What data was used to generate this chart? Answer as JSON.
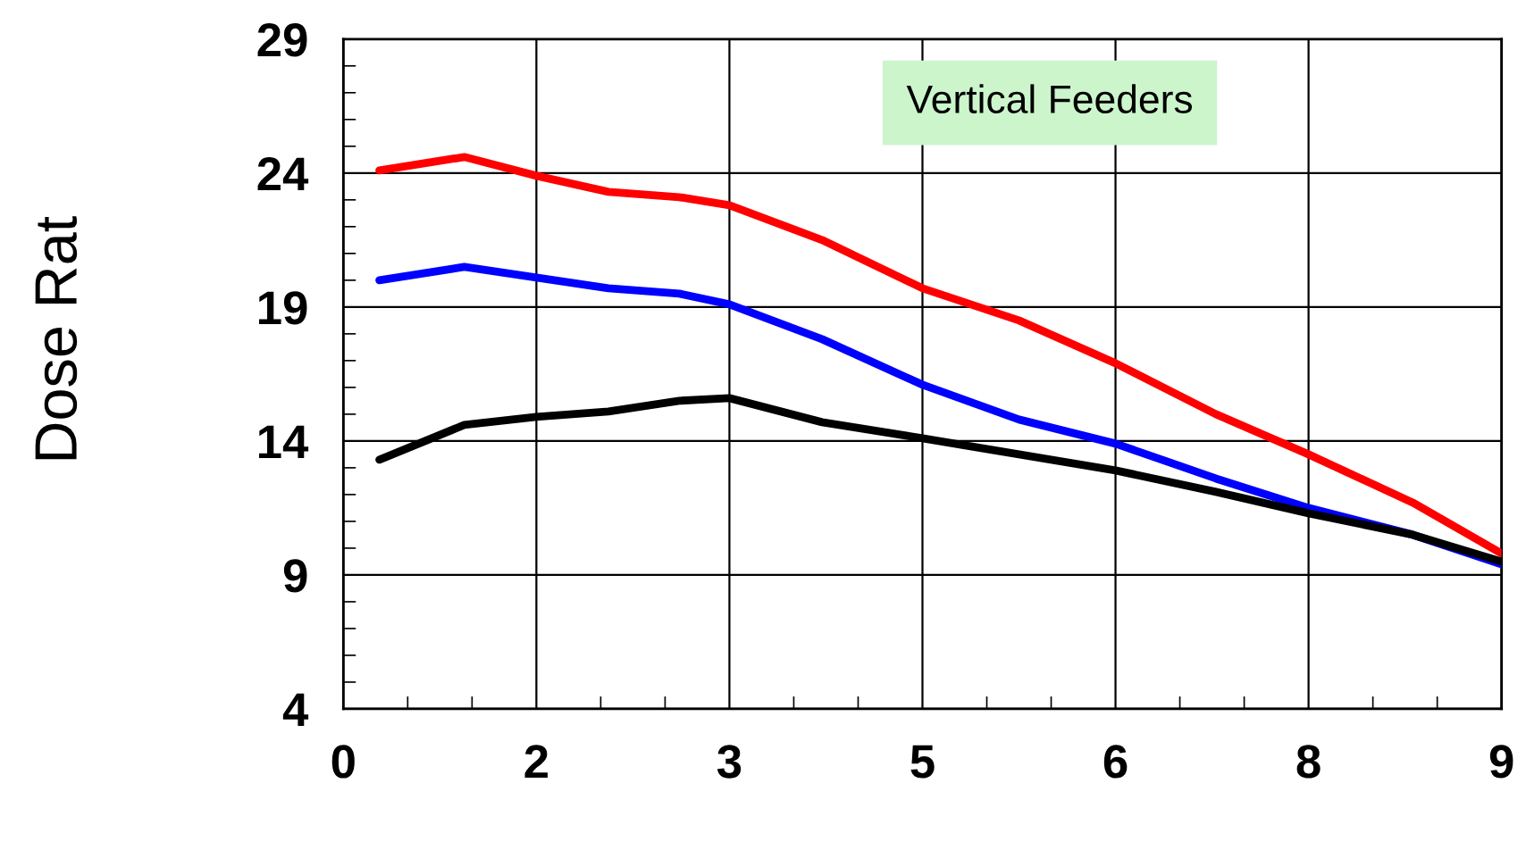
{
  "chart_data": {
    "type": "line",
    "ylabel": "Dose Rat",
    "annotations": [
      "Vertical Feeders"
    ],
    "series": [
      {
        "color": "#ff0000",
        "x": [
          0.28,
          0.94,
          1.5,
          2.06,
          2.61,
          3.0,
          3.72,
          4.5,
          5.25,
          6.0,
          6.78,
          7.5,
          8.31,
          9.0
        ],
        "values": [
          24.1,
          24.6,
          23.9,
          23.3,
          23.1,
          22.8,
          21.5,
          19.7,
          18.5,
          16.9,
          15.0,
          13.5,
          11.7,
          9.8
        ]
      },
      {
        "color": "#0000ff",
        "x": [
          0.28,
          0.94,
          1.5,
          2.06,
          2.61,
          3.0,
          3.72,
          4.5,
          5.25,
          6.0,
          6.78,
          7.5,
          8.31,
          9.0
        ],
        "values": [
          20.0,
          20.5,
          20.1,
          19.7,
          19.5,
          19.1,
          17.8,
          16.1,
          14.8,
          13.9,
          12.6,
          11.5,
          10.5,
          9.4
        ]
      },
      {
        "color": "#000000",
        "x": [
          0.28,
          0.94,
          1.5,
          2.06,
          2.61,
          3.0,
          3.72,
          4.5,
          5.25,
          6.0,
          6.78,
          7.5,
          8.31,
          9.0
        ],
        "values": [
          13.3,
          14.6,
          14.9,
          15.1,
          15.5,
          15.6,
          14.7,
          14.1,
          13.5,
          12.9,
          12.1,
          11.3,
          10.5,
          9.5
        ]
      }
    ],
    "xlim": [
      0,
      9
    ],
    "ylim": [
      4,
      29
    ],
    "xticks": [
      0,
      {
        "value": 1.5,
        "label": "2"
      },
      3,
      {
        "value": 4.5,
        "label": "5"
      },
      6,
      {
        "value": 7.5,
        "label": "8"
      },
      9
    ],
    "yticks": [
      4,
      9,
      14,
      19,
      24,
      29
    ],
    "grid": true,
    "marker": "none",
    "line_style": "solid"
  }
}
